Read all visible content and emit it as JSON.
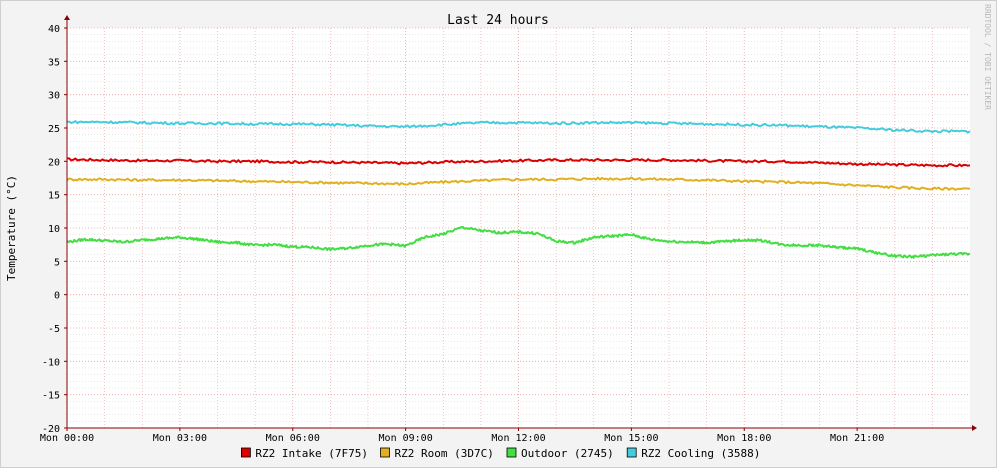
{
  "chart_data": {
    "type": "line",
    "title": "Last 24 hours",
    "xlabel": "",
    "ylabel": "Temperature (°C)",
    "watermark": "RRDTOOL / TOBI OETIKER",
    "ylim": [
      -20,
      40
    ],
    "yticks": [
      -20,
      -15,
      -10,
      -5,
      0,
      5,
      10,
      15,
      20,
      25,
      30,
      35,
      40
    ],
    "xlim": [
      0,
      24
    ],
    "xticks": [
      0,
      3,
      6,
      9,
      12,
      15,
      18,
      21
    ],
    "xtick_labels": [
      "Mon 00:00",
      "Mon 03:00",
      "Mon 06:00",
      "Mon 09:00",
      "Mon 12:00",
      "Mon 15:00",
      "Mon 18:00",
      "Mon 21:00"
    ],
    "grid": true,
    "legend_position": "bottom",
    "colors": {
      "background": "#f3f3f3",
      "canvas": "#ffffff",
      "major_grid": "#e8a0a0",
      "minor_grid": "#d6d6d6",
      "axis": "#8b0000"
    },
    "series": [
      {
        "name": "RZ2 Intake (7F75)",
        "color": "#dd0000",
        "x": [
          0,
          1,
          2,
          3,
          4,
          5,
          6,
          7,
          8,
          9,
          10,
          11,
          12,
          13,
          14,
          15,
          16,
          17,
          18,
          19,
          20,
          21,
          22,
          23,
          24
        ],
        "y": [
          20.3,
          20.2,
          20.1,
          20.1,
          20.0,
          20.0,
          19.9,
          19.9,
          19.8,
          19.7,
          19.9,
          20.0,
          20.1,
          20.2,
          20.2,
          20.2,
          20.2,
          20.1,
          20.0,
          20.0,
          19.8,
          19.6,
          19.5,
          19.4,
          19.4
        ]
      },
      {
        "name": "RZ2 Room (3D7C)",
        "color": "#e0b020",
        "x": [
          0,
          1,
          2,
          3,
          4,
          5,
          6,
          7,
          8,
          9,
          10,
          11,
          12,
          13,
          14,
          15,
          16,
          17,
          18,
          19,
          20,
          21,
          22,
          23,
          24
        ],
        "y": [
          17.3,
          17.3,
          17.2,
          17.2,
          17.1,
          17.0,
          16.9,
          16.8,
          16.7,
          16.6,
          16.9,
          17.1,
          17.3,
          17.3,
          17.4,
          17.4,
          17.3,
          17.2,
          17.0,
          16.9,
          16.7,
          16.4,
          16.1,
          15.9,
          15.9
        ]
      },
      {
        "name": "Outdoor (2745)",
        "color": "#44dd44",
        "x": [
          0,
          0.5,
          1,
          1.5,
          2,
          2.5,
          3,
          3.5,
          4,
          4.5,
          5,
          5.5,
          6,
          6.5,
          7,
          7.5,
          8,
          8.5,
          9,
          9.5,
          10,
          10.5,
          11,
          11.5,
          12,
          12.5,
          13,
          13.5,
          14,
          14.5,
          15,
          15.5,
          16,
          16.5,
          17,
          17.5,
          18,
          18.5,
          19,
          19.5,
          20,
          20.5,
          21,
          21.5,
          22,
          22.5,
          23,
          23.5,
          24
        ],
        "y": [
          7.9,
          8.3,
          8.1,
          7.9,
          8.2,
          8.4,
          8.6,
          8.3,
          7.9,
          7.8,
          7.4,
          7.5,
          7.2,
          7.1,
          6.8,
          7.0,
          7.4,
          7.6,
          7.3,
          8.6,
          9.1,
          10.1,
          9.6,
          9.3,
          9.4,
          9.2,
          8.0,
          7.8,
          8.6,
          8.8,
          9.0,
          8.3,
          8.0,
          7.9,
          7.8,
          8.0,
          8.2,
          8.1,
          7.5,
          7.4,
          7.4,
          7.1,
          6.9,
          6.3,
          5.8,
          5.7,
          5.9,
          6.1,
          6.1
        ]
      },
      {
        "name": "RZ2 Cooling (3588)",
        "color": "#44ccdd",
        "x": [
          0,
          1,
          2,
          3,
          4,
          5,
          6,
          7,
          8,
          9,
          10,
          11,
          12,
          13,
          14,
          15,
          16,
          17,
          18,
          19,
          20,
          21,
          22,
          23,
          24
        ],
        "y": [
          25.9,
          25.9,
          25.8,
          25.7,
          25.7,
          25.6,
          25.6,
          25.5,
          25.3,
          25.2,
          25.5,
          25.8,
          25.8,
          25.7,
          25.8,
          25.8,
          25.7,
          25.6,
          25.5,
          25.4,
          25.2,
          25.0,
          24.7,
          24.5,
          24.5
        ]
      }
    ]
  }
}
